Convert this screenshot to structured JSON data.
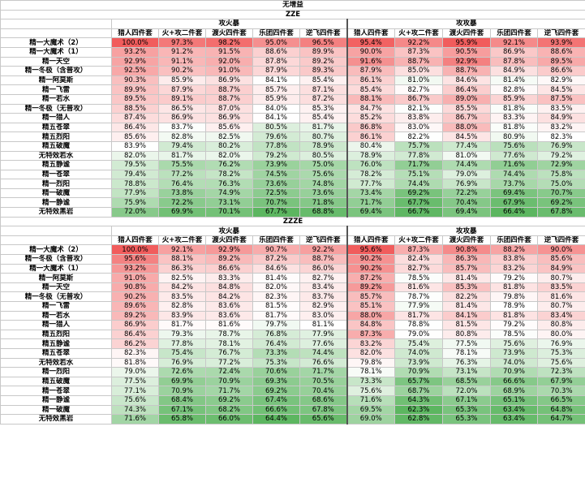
{
  "main_title": "无增益",
  "group_headers": [
    "攻火暴",
    "攻攻暴"
  ],
  "column_headers": [
    "猎人四件套",
    "火+攻二件套",
    "渡火四件套",
    "乐团四件套",
    "逆飞四件套"
  ],
  "color_stops": {
    "low": "#5cb660",
    "mid": "#ffffff",
    "high": "#f15c5c"
  },
  "sections": [
    {
      "title": "ZZE",
      "rows": [
        {
          "label": "精一大魔术（2）",
          "values": [
            "100.0%",
            "97.3%",
            "98.2%",
            "95.0%",
            "96.5%",
            "95.4%",
            "92.2%",
            "95.9%",
            "92.1%",
            "93.9%"
          ]
        },
        {
          "label": "精一大魔术（1）",
          "values": [
            "93.2%",
            "91.2%",
            "91.5%",
            "88.6%",
            "89.9%",
            "90.0%",
            "87.3%",
            "90.5%",
            "86.9%",
            "88.6%"
          ]
        },
        {
          "label": "精一天空",
          "values": [
            "92.9%",
            "91.1%",
            "92.0%",
            "87.8%",
            "89.2%",
            "91.6%",
            "88.7%",
            "92.9%",
            "87.8%",
            "89.5%"
          ]
        },
        {
          "label": "精一冬极（含普攻）",
          "values": [
            "92.5%",
            "90.2%",
            "91.0%",
            "87.9%",
            "89.3%",
            "87.9%",
            "85.0%",
            "88.7%",
            "84.9%",
            "86.6%"
          ]
        },
        {
          "label": "精一阿莫斯",
          "values": [
            "90.3%",
            "85.9%",
            "86.9%",
            "84.1%",
            "85.4%",
            "86.1%",
            "81.0%",
            "84.6%",
            "81.4%",
            "82.9%"
          ]
        },
        {
          "label": "精一飞雷",
          "values": [
            "89.9%",
            "87.9%",
            "88.7%",
            "85.7%",
            "87.1%",
            "85.4%",
            "82.7%",
            "86.4%",
            "82.8%",
            "84.5%"
          ]
        },
        {
          "label": "精一若水",
          "values": [
            "89.5%",
            "89.1%",
            "88.7%",
            "85.9%",
            "87.2%",
            "88.1%",
            "86.7%",
            "89.0%",
            "85.9%",
            "87.5%"
          ]
        },
        {
          "label": "精一冬极（无普攻）",
          "values": [
            "88.5%",
            "86.5%",
            "87.0%",
            "84.0%",
            "85.3%",
            "84.7%",
            "82.1%",
            "85.5%",
            "81.8%",
            "83.5%"
          ]
        },
        {
          "label": "精一猎人",
          "values": [
            "87.4%",
            "86.9%",
            "86.9%",
            "84.1%",
            "85.4%",
            "85.2%",
            "83.8%",
            "86.7%",
            "83.3%",
            "84.9%"
          ]
        },
        {
          "label": "精五苍翠",
          "values": [
            "86.4%",
            "83.7%",
            "85.6%",
            "80.5%",
            "81.7%",
            "86.8%",
            "83.0%",
            "88.0%",
            "81.8%",
            "83.2%"
          ]
        },
        {
          "label": "精五烈阳",
          "values": [
            "85.6%",
            "82.8%",
            "82.5%",
            "79.6%",
            "80.7%",
            "86.1%",
            "82.2%",
            "84.5%",
            "80.9%",
            "82.3%"
          ]
        },
        {
          "label": "精五破魔",
          "values": [
            "83.9%",
            "79.4%",
            "80.2%",
            "77.8%",
            "78.9%",
            "80.4%",
            "75.7%",
            "77.4%",
            "75.6%",
            "76.9%"
          ]
        },
        {
          "label": "无特效若水",
          "values": [
            "82.0%",
            "81.7%",
            "82.0%",
            "79.2%",
            "80.5%",
            "78.9%",
            "77.8%",
            "81.0%",
            "77.6%",
            "79.2%"
          ]
        },
        {
          "label": "精五静谧",
          "values": [
            "79.5%",
            "75.5%",
            "76.2%",
            "73.9%",
            "75.0%",
            "76.0%",
            "71.7%",
            "74.4%",
            "71.6%",
            "72.9%"
          ]
        },
        {
          "label": "精一苍翠",
          "values": [
            "79.4%",
            "77.2%",
            "78.2%",
            "74.5%",
            "75.6%",
            "78.2%",
            "75.1%",
            "79.0%",
            "74.4%",
            "75.8%"
          ]
        },
        {
          "label": "精一烈阳",
          "values": [
            "78.8%",
            "76.4%",
            "76.3%",
            "73.6%",
            "74.8%",
            "77.7%",
            "74.4%",
            "76.9%",
            "73.7%",
            "75.0%"
          ]
        },
        {
          "label": "精一破魔",
          "values": [
            "77.9%",
            "73.8%",
            "74.9%",
            "72.5%",
            "73.6%",
            "73.4%",
            "69.2%",
            "72.2%",
            "69.4%",
            "70.7%"
          ]
        },
        {
          "label": "精一静谧",
          "values": [
            "75.9%",
            "72.2%",
            "73.1%",
            "70.7%",
            "71.8%",
            "71.7%",
            "67.7%",
            "70.4%",
            "67.9%",
            "69.2%"
          ]
        },
        {
          "label": "无特效黑岩",
          "values": [
            "72.0%",
            "69.9%",
            "70.1%",
            "67.7%",
            "68.8%",
            "69.4%",
            "66.7%",
            "69.4%",
            "66.4%",
            "67.8%"
          ]
        }
      ]
    },
    {
      "title": "ZZZE",
      "rows": [
        {
          "label": "精一大魔术（2）",
          "values": [
            "100.0%",
            "92.1%",
            "92.9%",
            "90.7%",
            "92.2%",
            "95.6%",
            "87.3%",
            "90.8%",
            "88.2%",
            "90.0%"
          ]
        },
        {
          "label": "精一冬极（含普攻）",
          "values": [
            "95.6%",
            "88.1%",
            "89.2%",
            "87.2%",
            "88.7%",
            "90.2%",
            "82.4%",
            "86.3%",
            "83.8%",
            "85.6%"
          ]
        },
        {
          "label": "精一大魔术（1）",
          "values": [
            "93.2%",
            "86.3%",
            "86.6%",
            "84.6%",
            "86.0%",
            "90.2%",
            "82.7%",
            "85.7%",
            "83.2%",
            "84.9%"
          ]
        },
        {
          "label": "精一阿莫斯",
          "values": [
            "91.0%",
            "82.5%",
            "83.3%",
            "81.4%",
            "82.7%",
            "87.2%",
            "78.5%",
            "81.4%",
            "79.2%",
            "80.7%"
          ]
        },
        {
          "label": "精一天空",
          "values": [
            "90.8%",
            "84.2%",
            "84.8%",
            "82.0%",
            "83.4%",
            "89.2%",
            "81.6%",
            "85.3%",
            "81.8%",
            "83.5%"
          ]
        },
        {
          "label": "精一冬极（无普攻）",
          "values": [
            "90.2%",
            "83.5%",
            "84.2%",
            "82.3%",
            "83.7%",
            "85.7%",
            "78.7%",
            "82.2%",
            "79.8%",
            "81.6%"
          ]
        },
        {
          "label": "精一飞雷",
          "values": [
            "89.6%",
            "82.8%",
            "83.6%",
            "81.5%",
            "82.9%",
            "85.1%",
            "77.9%",
            "81.4%",
            "78.9%",
            "80.7%"
          ]
        },
        {
          "label": "精一若水",
          "values": [
            "89.2%",
            "83.9%",
            "83.6%",
            "81.7%",
            "83.0%",
            "88.0%",
            "81.7%",
            "84.1%",
            "81.8%",
            "83.4%"
          ]
        },
        {
          "label": "精一猎人",
          "values": [
            "86.9%",
            "81.7%",
            "81.6%",
            "79.7%",
            "81.1%",
            "84.8%",
            "78.8%",
            "81.5%",
            "79.2%",
            "80.8%"
          ]
        },
        {
          "label": "精五烈阳",
          "values": [
            "86.4%",
            "79.3%",
            "78.7%",
            "76.8%",
            "77.9%",
            "87.3%",
            "79.0%",
            "80.8%",
            "78.5%",
            "80.0%"
          ]
        },
        {
          "label": "精五静谧",
          "values": [
            "86.2%",
            "77.8%",
            "78.1%",
            "76.4%",
            "77.6%",
            "83.2%",
            "75.4%",
            "77.5%",
            "75.6%",
            "76.9%"
          ]
        },
        {
          "label": "精五苍翠",
          "values": [
            "82.3%",
            "75.4%",
            "76.7%",
            "73.3%",
            "74.4%",
            "82.0%",
            "74.0%",
            "78.1%",
            "73.9%",
            "75.3%"
          ]
        },
        {
          "label": "无特效若水",
          "values": [
            "81.8%",
            "76.9%",
            "77.2%",
            "75.3%",
            "76.6%",
            "79.8%",
            "73.9%",
            "76.3%",
            "74.0%",
            "75.6%"
          ]
        },
        {
          "label": "精一烈阳",
          "values": [
            "79.0%",
            "72.6%",
            "72.4%",
            "70.6%",
            "71.7%",
            "78.1%",
            "70.9%",
            "73.1%",
            "70.9%",
            "72.3%"
          ]
        },
        {
          "label": "精五破魔",
          "values": [
            "77.5%",
            "69.9%",
            "70.9%",
            "69.3%",
            "70.5%",
            "73.3%",
            "65.7%",
            "68.5%",
            "66.6%",
            "67.9%"
          ]
        },
        {
          "label": "精一苍翠",
          "values": [
            "77.1%",
            "70.9%",
            "71.7%",
            "69.2%",
            "70.4%",
            "75.6%",
            "68.7%",
            "72.0%",
            "68.9%",
            "70.3%"
          ]
        },
        {
          "label": "精一静谧",
          "values": [
            "75.6%",
            "68.4%",
            "69.2%",
            "67.4%",
            "68.6%",
            "71.6%",
            "64.3%",
            "67.1%",
            "65.1%",
            "66.5%"
          ]
        },
        {
          "label": "精一破魔",
          "values": [
            "74.3%",
            "67.1%",
            "68.2%",
            "66.6%",
            "67.8%",
            "69.5%",
            "62.3%",
            "65.3%",
            "63.4%",
            "64.8%"
          ]
        },
        {
          "label": "无特效黑岩",
          "values": [
            "71.6%",
            "65.8%",
            "66.0%",
            "64.4%",
            "65.6%",
            "69.0%",
            "62.8%",
            "65.3%",
            "63.4%",
            "64.7%"
          ]
        }
      ]
    }
  ]
}
